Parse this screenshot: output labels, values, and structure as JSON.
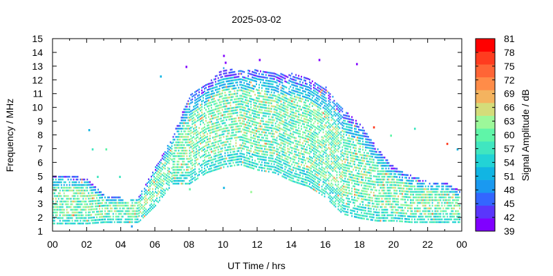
{
  "chart_data": {
    "type": "heatmap",
    "title": "2025-03-02",
    "xlabel": "UT Time / hrs",
    "ylabel": "Frequency / MHz",
    "xlim": [
      0,
      24
    ],
    "ylim": [
      1,
      15
    ],
    "x_ticks": [
      "00",
      "02",
      "04",
      "06",
      "08",
      "10",
      "12",
      "14",
      "16",
      "18",
      "20",
      "22",
      "00"
    ],
    "y_ticks": [
      "1",
      "2",
      "3",
      "4",
      "5",
      "6",
      "7",
      "8",
      "9",
      "10",
      "11",
      "12",
      "13",
      "14",
      "15"
    ],
    "grid": false,
    "colorbar": {
      "label": "Signal Amplitude / dB",
      "min": 39,
      "max": 81,
      "ticks": [
        "39",
        "42",
        "45",
        "48",
        "51",
        "54",
        "57",
        "60",
        "63",
        "66",
        "69",
        "72",
        "75",
        "78",
        "81"
      ],
      "colors": [
        "#8000ff",
        "#5a36fb",
        "#3366ff",
        "#1a99f0",
        "#11b5e3",
        "#22d3d6",
        "#40e6c0",
        "#5ff5a8",
        "#9cf89a",
        "#d4dc7a",
        "#f4b35f",
        "#ff8c48",
        "#ff6536",
        "#ff3c1f",
        "#ff0000"
      ]
    },
    "description_grid_hours": 0.25,
    "upper_edge_mhz_by_hour": [
      [
        0,
        5.0
      ],
      [
        1,
        5.0
      ],
      [
        2,
        4.8
      ],
      [
        3,
        3.6
      ],
      [
        4,
        3.4
      ],
      [
        5,
        3.4
      ],
      [
        6,
        5.6
      ],
      [
        7,
        7.8
      ],
      [
        8,
        10.8
      ],
      [
        9,
        11.6
      ],
      [
        10,
        12.8
      ],
      [
        11,
        12.6
      ],
      [
        12,
        12.7
      ],
      [
        13,
        12.4
      ],
      [
        14,
        12.4
      ],
      [
        15,
        12.0
      ],
      [
        16,
        11.4
      ],
      [
        17,
        9.8
      ],
      [
        18,
        8.8
      ],
      [
        19,
        7.0
      ],
      [
        20,
        5.6
      ],
      [
        21,
        5.0
      ],
      [
        22,
        4.6
      ],
      [
        23,
        4.5
      ],
      [
        24,
        3.8
      ]
    ],
    "lower_edge_mhz_by_hour": [
      [
        0,
        1.5
      ],
      [
        1,
        1.5
      ],
      [
        2,
        1.5
      ],
      [
        3,
        1.6
      ],
      [
        4,
        1.6
      ],
      [
        5,
        1.6
      ],
      [
        6,
        2.8
      ],
      [
        7,
        4.4
      ],
      [
        8,
        4.4
      ],
      [
        9,
        5.2
      ],
      [
        10,
        5.6
      ],
      [
        11,
        5.8
      ],
      [
        12,
        5.4
      ],
      [
        13,
        5.2
      ],
      [
        14,
        4.6
      ],
      [
        15,
        4.2
      ],
      [
        16,
        3.4
      ],
      [
        17,
        2.2
      ],
      [
        18,
        1.9
      ],
      [
        19,
        1.7
      ],
      [
        20,
        1.7
      ],
      [
        21,
        1.6
      ],
      [
        22,
        1.6
      ],
      [
        23,
        1.6
      ],
      [
        24,
        1.6
      ]
    ],
    "outliers": [
      {
        "x": 10.0,
        "y": 13.7,
        "v": 39
      },
      {
        "x": 10.1,
        "y": 13.2,
        "v": 40
      },
      {
        "x": 12.1,
        "y": 13.4,
        "v": 40
      },
      {
        "x": 15.6,
        "y": 13.4,
        "v": 41
      },
      {
        "x": 17.8,
        "y": 13.1,
        "v": 40
      },
      {
        "x": 7.8,
        "y": 12.9,
        "v": 41
      },
      {
        "x": 6.3,
        "y": 12.2,
        "v": 52
      },
      {
        "x": 2.1,
        "y": 8.3,
        "v": 52
      },
      {
        "x": 2.3,
        "y": 6.9,
        "v": 58
      },
      {
        "x": 3.1,
        "y": 6.9,
        "v": 61
      },
      {
        "x": 2.6,
        "y": 4.9,
        "v": 58
      },
      {
        "x": 3.9,
        "y": 4.9,
        "v": 58
      },
      {
        "x": 18.8,
        "y": 8.5,
        "v": 78
      },
      {
        "x": 19.8,
        "y": 7.9,
        "v": 60
      },
      {
        "x": 21.2,
        "y": 8.4,
        "v": 56
      },
      {
        "x": 23.1,
        "y": 7.3,
        "v": 76
      },
      {
        "x": 23.7,
        "y": 6.9,
        "v": 52
      },
      {
        "x": 10.0,
        "y": 4.1,
        "v": 51
      },
      {
        "x": 11.6,
        "y": 3.8,
        "v": 62
      },
      {
        "x": 8.0,
        "y": 4.0,
        "v": 60
      },
      {
        "x": 4.6,
        "y": 1.3,
        "v": 49
      }
    ]
  }
}
